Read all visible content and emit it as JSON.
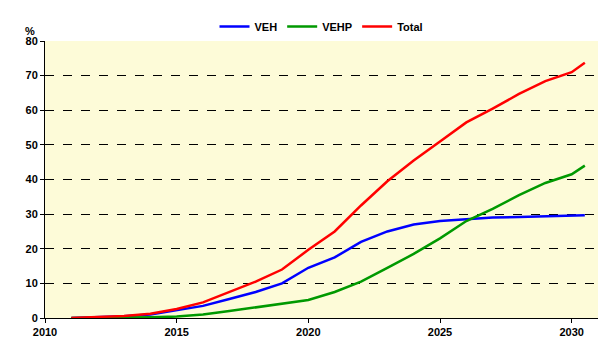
{
  "chart_data": {
    "type": "line",
    "ylabel": "%",
    "x": [
      2011,
      2012,
      2013,
      2014,
      2015,
      2016,
      2017,
      2018,
      2019,
      2020,
      2021,
      2022,
      2023,
      2024,
      2025,
      2026,
      2027,
      2028,
      2029,
      2030,
      2030.5
    ],
    "series": [
      {
        "name": "VEH",
        "color": "#0000ff",
        "values": [
          0,
          0.2,
          0.5,
          1,
          2.2,
          3.5,
          5.5,
          7.5,
          10,
          14.5,
          17.5,
          22,
          25,
          27,
          28,
          28.5,
          29,
          29.2,
          29.4,
          29.5,
          29.7
        ]
      },
      {
        "name": "VEHP",
        "color": "#009900",
        "values": [
          0,
          0,
          0.1,
          0.2,
          0.4,
          1,
          2,
          3,
          4,
          5.2,
          7.5,
          10.5,
          14.5,
          18.5,
          23,
          28,
          31.5,
          35.5,
          39,
          41.5,
          44
        ]
      },
      {
        "name": "Total",
        "color": "#ff0000",
        "values": [
          0,
          0.2,
          0.6,
          1.2,
          2.6,
          4.5,
          7.5,
          10.5,
          14,
          19.7,
          25,
          32.5,
          39.5,
          45.5,
          51,
          56.5,
          60.5,
          64.7,
          68.4,
          71,
          73.7
        ]
      }
    ],
    "xlim": [
      2010,
      2031
    ],
    "xticks": [
      2010,
      2015,
      2020,
      2025,
      2030
    ],
    "ylim": [
      0,
      80
    ],
    "yticks": [
      0,
      10,
      20,
      30,
      40,
      50,
      60,
      70,
      80
    ],
    "grid": true,
    "legend": "top"
  }
}
